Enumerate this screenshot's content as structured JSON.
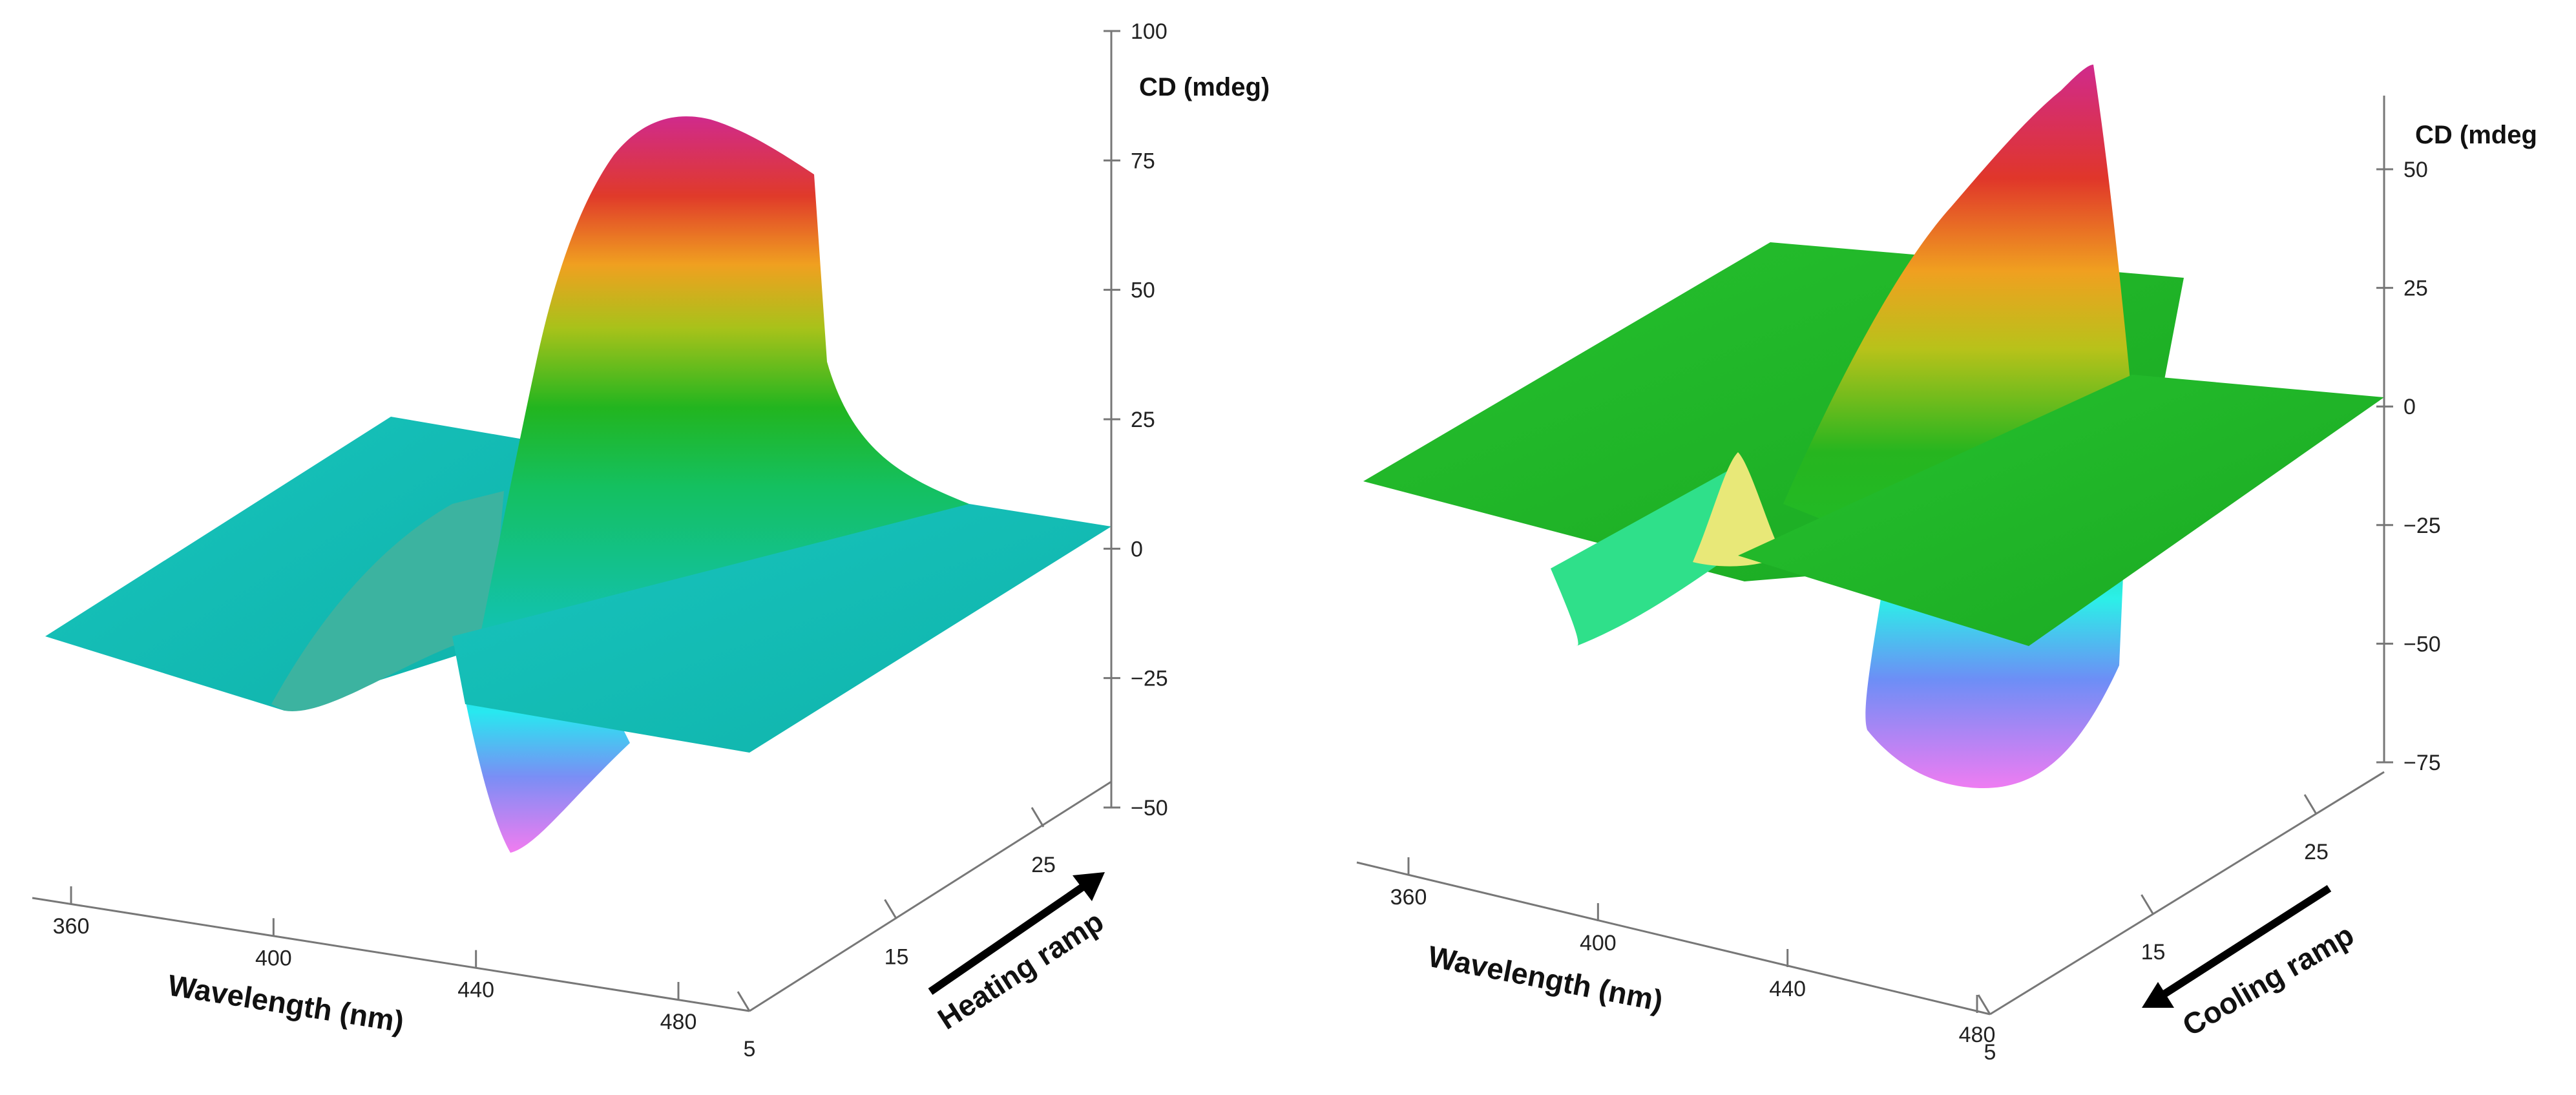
{
  "chart_data": [
    {
      "type": "surface3d",
      "panel": "left",
      "zlabel": "CD (mdeg)",
      "xlabel": "Wavelength (nm)",
      "ylabel": "",
      "ramp_label": "Heating ramp",
      "ramp_direction": "increasing temperature",
      "z_ticks": [
        "100",
        "75",
        "50",
        "25",
        "0",
        "−25",
        "−50"
      ],
      "z_tick_values": [
        100,
        75,
        50,
        25,
        0,
        -25,
        -50
      ],
      "zlim": [
        -50,
        100
      ],
      "x_ticks": [
        "360",
        "400",
        "440",
        "480"
      ],
      "x_tick_values": [
        360,
        400,
        440,
        480
      ],
      "y_ticks": [
        "5",
        "15",
        "25"
      ],
      "y_tick_values": [
        5,
        15,
        25
      ],
      "surface_color": "#12c2b9",
      "features": {
        "positive_peak_mdeg": 82,
        "negative_peak_mdeg": -45,
        "baseline_mdeg": 0
      }
    },
    {
      "type": "surface3d",
      "panel": "right",
      "zlabel": "CD (mdeg",
      "xlabel": "Wavelength (nm)",
      "ylabel": "",
      "ramp_label": "Cooling ramp",
      "ramp_direction": "decreasing temperature",
      "z_ticks": [
        "50",
        "25",
        "0",
        "−25",
        "−50",
        "−75"
      ],
      "z_tick_values": [
        50,
        25,
        0,
        -25,
        -50,
        -75
      ],
      "zlim": [
        -75,
        60
      ],
      "x_ticks": [
        "360",
        "400",
        "440",
        "480"
      ],
      "x_tick_values": [
        360,
        400,
        440,
        480
      ],
      "y_ticks": [
        "5",
        "15",
        "25"
      ],
      "y_tick_values": [
        5,
        15,
        25
      ],
      "surface_color": "#1fbe2a",
      "features": {
        "positive_peak_mdeg": 72,
        "negative_peak_mdeg": -82,
        "baseline_mdeg": 0
      }
    }
  ]
}
